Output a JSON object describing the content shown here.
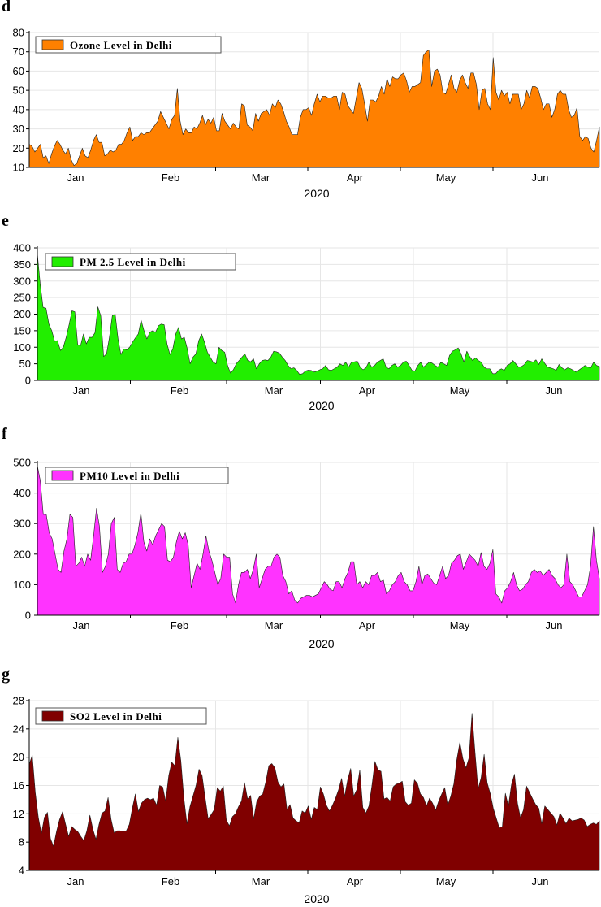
{
  "chart_data": [
    {
      "panel": "d",
      "type": "area",
      "legend": "Ozone Level in Delhi",
      "color": "#ff8000",
      "xlabel": "2020",
      "months": [
        "Jan",
        "Feb",
        "Mar",
        "Apr",
        "May",
        "Jun"
      ],
      "ylim": [
        10,
        80
      ],
      "yticks": [
        10,
        20,
        30,
        40,
        50,
        60,
        70,
        80
      ],
      "values": [
        22,
        21,
        18,
        20,
        22,
        15,
        16,
        12,
        17,
        21,
        24,
        22,
        19,
        17,
        20,
        14,
        11,
        12,
        16,
        20,
        16,
        15,
        19,
        24,
        27,
        23,
        23,
        16,
        17,
        19,
        18,
        19,
        22,
        22,
        24,
        28,
        31,
        24,
        26,
        26,
        28,
        27,
        28,
        28,
        30,
        32,
        34,
        39,
        36,
        33,
        30,
        35,
        37,
        51,
        34,
        27,
        30,
        28,
        28,
        31,
        30,
        33,
        37,
        32,
        35,
        33,
        36,
        29,
        29,
        38,
        34,
        32,
        30,
        33,
        31,
        30,
        43,
        42,
        32,
        31,
        29,
        38,
        34,
        38,
        39,
        40,
        37,
        43,
        41,
        45,
        43,
        39,
        34,
        31,
        27,
        27,
        27,
        36,
        40,
        40,
        41,
        37,
        43,
        48,
        44,
        47,
        47,
        46,
        46,
        47,
        47,
        40,
        49,
        48,
        42,
        40,
        38,
        46,
        54,
        51,
        43,
        34,
        45,
        45,
        44,
        47,
        52,
        48,
        56,
        52,
        57,
        56,
        56,
        58,
        59,
        55,
        49,
        52,
        52,
        53,
        54,
        68,
        70,
        71,
        52,
        60,
        61,
        58,
        49,
        48,
        53,
        58,
        51,
        49,
        55,
        58,
        54,
        51,
        59,
        59,
        53,
        40,
        50,
        51,
        43,
        40,
        67,
        49,
        45,
        50,
        47,
        49,
        43,
        48,
        48,
        48,
        40,
        43,
        50,
        46,
        52,
        52,
        51,
        46,
        40,
        43,
        43,
        36,
        40,
        48,
        50,
        48,
        48,
        40,
        36,
        37,
        41,
        26,
        24,
        26,
        25,
        20,
        18,
        24,
        31
      ]
    },
    {
      "panel": "e",
      "type": "area",
      "legend": "PM 2.5 Level in Delhi",
      "color": "#22ee00",
      "xlabel": "2020",
      "months": [
        "Jan",
        "Feb",
        "Mar",
        "Apr",
        "May",
        "Jun"
      ],
      "ylim": [
        0,
        400
      ],
      "yticks": [
        0,
        50,
        100,
        150,
        200,
        250,
        300,
        350,
        400
      ],
      "values": [
        383,
        290,
        220,
        218,
        170,
        150,
        118,
        120,
        90,
        100,
        130,
        168,
        210,
        207,
        108,
        105,
        140,
        110,
        130,
        130,
        144,
        222,
        195,
        72,
        80,
        130,
        195,
        200,
        125,
        78,
        95,
        92,
        100,
        115,
        128,
        140,
        182,
        150,
        125,
        145,
        150,
        145,
        165,
        170,
        168,
        110,
        78,
        95,
        140,
        160,
        125,
        130,
        96,
        50,
        70,
        80,
        120,
        140,
        115,
        85,
        70,
        55,
        50,
        100,
        90,
        85,
        45,
        22,
        32,
        50,
        60,
        70,
        80,
        60,
        56,
        65,
        35,
        50,
        60,
        62,
        60,
        70,
        88,
        86,
        82,
        70,
        60,
        45,
        35,
        38,
        30,
        18,
        20,
        28,
        31,
        30,
        25,
        28,
        32,
        35,
        45,
        32,
        30,
        35,
        40,
        50,
        45,
        55,
        40,
        55,
        56,
        58,
        40,
        32,
        38,
        55,
        40,
        45,
        55,
        60,
        65,
        40,
        35,
        45,
        50,
        40,
        45,
        55,
        58,
        45,
        30,
        28,
        45,
        55,
        40,
        48,
        55,
        52,
        45,
        40,
        55,
        50,
        45,
        75,
        88,
        92,
        98,
        80,
        55,
        88,
        72,
        60,
        68,
        60,
        55,
        40,
        35,
        35,
        20,
        20,
        30,
        35,
        30,
        45,
        50,
        60,
        50,
        40,
        42,
        48,
        60,
        58,
        55,
        62,
        48,
        65,
        52,
        40,
        38,
        35,
        30,
        48,
        38,
        32,
        38,
        35,
        30,
        25,
        32,
        38,
        45,
        40,
        38,
        55,
        45,
        42
      ]
    },
    {
      "panel": "f",
      "type": "area",
      "legend": "PM10 Level in Delhi",
      "color": "#ff33ff",
      "xlabel": "2020",
      "months": [
        "Jan",
        "Feb",
        "Mar",
        "Apr",
        "May",
        "Jun"
      ],
      "ylim": [
        0,
        500
      ],
      "yticks": [
        0,
        100,
        200,
        300,
        400,
        500
      ],
      "values": [
        490,
        440,
        330,
        330,
        270,
        250,
        200,
        150,
        140,
        210,
        250,
        330,
        320,
        160,
        170,
        190,
        160,
        200,
        180,
        260,
        350,
        290,
        140,
        160,
        200,
        300,
        320,
        150,
        140,
        170,
        175,
        200,
        200,
        230,
        270,
        335,
        240,
        210,
        250,
        230,
        260,
        280,
        300,
        290,
        180,
        175,
        190,
        240,
        275,
        250,
        270,
        230,
        90,
        130,
        170,
        150,
        200,
        260,
        210,
        180,
        140,
        100,
        120,
        200,
        190,
        190,
        70,
        40,
        100,
        140,
        140,
        150,
        120,
        150,
        200,
        90,
        120,
        150,
        160,
        160,
        190,
        200,
        190,
        130,
        110,
        70,
        80,
        50,
        40,
        55,
        60,
        65,
        65,
        60,
        65,
        70,
        90,
        110,
        100,
        85,
        80,
        110,
        110,
        90,
        120,
        140,
        175,
        175,
        100,
        110,
        90,
        110,
        100,
        130,
        130,
        140,
        110,
        115,
        70,
        80,
        100,
        110,
        130,
        140,
        110,
        100,
        80,
        80,
        110,
        160,
        100,
        130,
        135,
        120,
        105,
        100,
        130,
        160,
        120,
        130,
        170,
        180,
        195,
        200,
        150,
        175,
        200,
        190,
        180,
        160,
        205,
        160,
        150,
        170,
        215,
        70,
        60,
        40,
        80,
        90,
        110,
        140,
        100,
        80,
        85,
        100,
        110,
        140,
        150,
        140,
        145,
        130,
        140,
        150,
        130,
        120,
        100,
        90,
        100,
        200,
        110,
        100,
        80,
        60,
        60,
        80,
        100,
        160,
        290,
        180,
        120
      ]
    },
    {
      "panel": "g",
      "type": "area",
      "legend": "SO2 Level in Delhi",
      "color": "#800000",
      "xlabel": "2020",
      "months": [
        "Jan",
        "Feb",
        "Mar",
        "Apr",
        "May",
        "Jun"
      ],
      "ylim": [
        4,
        28
      ],
      "yticks": [
        4,
        8,
        12,
        16,
        20,
        24,
        28
      ],
      "values": [
        19,
        20.3,
        15,
        11.5,
        9.2,
        11.5,
        12.2,
        8.5,
        7.4,
        9.5,
        11.2,
        12.3,
        10.5,
        8.8,
        10.2,
        9.8,
        9.5,
        8.8,
        8.2,
        9.6,
        11.8,
        9.8,
        8.4,
        10.5,
        12.1,
        12.4,
        14.3,
        11.2,
        9.3,
        9.6,
        9.6,
        9.5,
        9.6,
        10.5,
        12.8,
        14.8,
        12.3,
        13.5,
        14,
        14.2,
        14,
        14.2,
        13.2,
        16,
        15.8,
        13.8,
        17.4,
        19.3,
        18.8,
        22.8,
        19.5,
        14.2,
        10.6,
        13,
        14.5,
        16,
        18.3,
        17.4,
        14.3,
        11.3,
        11.9,
        12.6,
        15.7,
        15.2,
        15.9,
        11.1,
        10.3,
        11.6,
        12,
        13,
        13.8,
        16.4,
        14.1,
        14.6,
        11.3,
        13.7,
        14.5,
        14.8,
        16.5,
        18.8,
        19.1,
        18.5,
        16.5,
        15.8,
        16.2,
        12.6,
        13.3,
        11.4,
        11,
        10.7,
        12.4,
        12.1,
        13.1,
        11.2,
        12.9,
        12.6,
        15.8,
        14.8,
        13.2,
        12.4,
        13.2,
        14.2,
        15.4,
        17,
        14.5,
        16.8,
        18.4,
        14.5,
        15.4,
        18.2,
        12.9,
        12.1,
        13.1,
        16,
        19.4,
        18.2,
        18,
        14.1,
        14.3,
        13.8,
        15.8,
        16.2,
        16.3,
        16.6,
        13.7,
        13.2,
        13.5,
        16.8,
        16.3,
        14.8,
        14.3,
        13.1,
        14.2,
        13.5,
        12.5,
        13.8,
        14.8,
        15.7,
        13.2,
        14.5,
        16.2,
        19.7,
        22.1,
        19.8,
        18.5,
        19.9,
        26.2,
        20.7,
        15.5,
        17.1,
        20.4,
        16.4,
        14.9,
        12.8,
        11.4,
        10,
        10.2,
        14.9,
        13.1,
        16.1,
        17.6,
        13.5,
        11.4,
        12.6,
        15.9,
        15,
        14.1,
        13.3,
        12.8,
        10.6,
        13.1,
        12.6,
        12.1,
        11.6,
        10.4,
        12.1,
        11.4,
        10.6,
        11.4,
        11,
        11.1,
        11.2,
        11.4,
        11.1,
        10.2,
        10.5,
        10.7,
        10.5,
        11
      ]
    }
  ]
}
